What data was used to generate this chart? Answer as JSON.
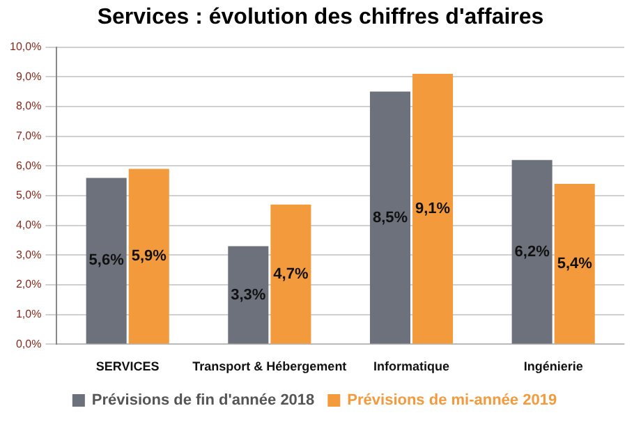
{
  "chart_data": {
    "type": "bar",
    "title": "Services : évolution des chiffres d'affaires",
    "categories": [
      "SERVICES",
      "Transport & Hébergement",
      "Informatique",
      "Ingénierie"
    ],
    "series": [
      {
        "name": "Prévisions de fin d'année 2018",
        "color": "#6d717c",
        "values": [
          5.6,
          3.3,
          8.5,
          6.2
        ],
        "value_labels": [
          "5,6%",
          "3,3%",
          "8,5%",
          "6,2%"
        ]
      },
      {
        "name": "Prévisions de mi-année 2019",
        "color": "#f39a3d",
        "values": [
          5.9,
          4.7,
          9.1,
          5.4
        ],
        "value_labels": [
          "5,9%",
          "4,7%",
          "9,1%",
          "5,4%"
        ]
      }
    ],
    "ylim": [
      0,
      10
    ],
    "yticks": [
      {
        "value": 0,
        "label": "0,0%"
      },
      {
        "value": 1,
        "label": "1,0%"
      },
      {
        "value": 2,
        "label": "2,0%"
      },
      {
        "value": 3,
        "label": "3,0%"
      },
      {
        "value": 4,
        "label": "4,0%"
      },
      {
        "value": 5,
        "label": "5,0%"
      },
      {
        "value": 6,
        "label": "6,0%"
      },
      {
        "value": 7,
        "label": "7,0%"
      },
      {
        "value": 8,
        "label": "8,0%"
      },
      {
        "value": 9,
        "label": "9,0%"
      },
      {
        "value": 10,
        "label": "10,0%"
      }
    ],
    "grid": "y",
    "legend": "bottom"
  }
}
